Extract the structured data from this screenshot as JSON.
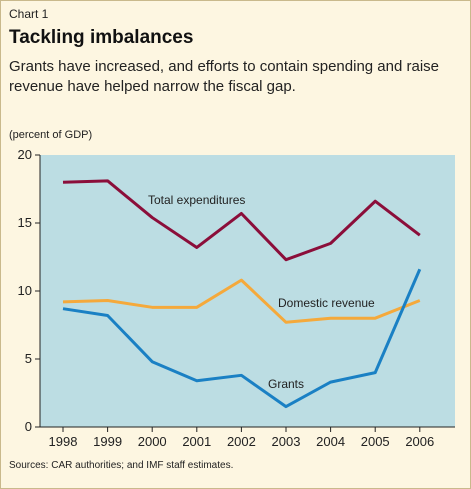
{
  "header": {
    "label": "Chart 1",
    "title": "Tackling imbalances",
    "subtitle": "Grants have increased, and efforts to contain spending and raise revenue have helped narrow the fiscal gap.",
    "units": "(percent of GDP)"
  },
  "source": "Sources: CAR authorities; and IMF staff estimates.",
  "colors": {
    "plot_bg": "#bcdde3",
    "page_bg": "#fdf6e1"
  },
  "chart_data": {
    "type": "line",
    "x": [
      "1998",
      "1999",
      "2000",
      "2001",
      "2002",
      "2003",
      "2004",
      "2005",
      "2006"
    ],
    "ylim": [
      0,
      20
    ],
    "yticks": [
      "0",
      "5",
      "10",
      "15",
      "20"
    ],
    "grid": false,
    "series": [
      {
        "name": "Total expenditures",
        "color": "#8b0e3a",
        "values": [
          18.0,
          18.1,
          15.4,
          13.2,
          15.7,
          12.3,
          13.5,
          16.6,
          14.1
        ]
      },
      {
        "name": "Domestic revenue",
        "color": "#f5a93b",
        "values": [
          9.2,
          9.3,
          8.8,
          8.8,
          10.8,
          7.7,
          8.0,
          8.0,
          9.3
        ]
      },
      {
        "name": "Grants",
        "color": "#1a80c4",
        "values": [
          8.7,
          8.2,
          4.8,
          3.4,
          3.8,
          1.5,
          3.3,
          4.0,
          11.6
        ]
      }
    ]
  }
}
